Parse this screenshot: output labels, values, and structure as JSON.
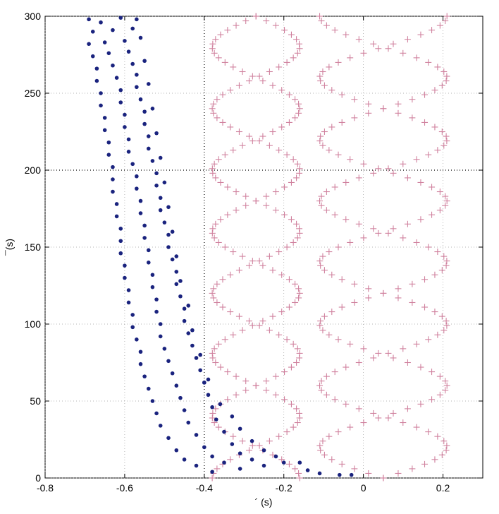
{
  "chart_data": {
    "type": "scatter",
    "xlabel": "´ (s)",
    "ylabel": "¯(s)",
    "xlim": [
      -0.8,
      0.3
    ],
    "ylim": [
      0,
      300
    ],
    "xticks": [
      -0.8,
      -0.6,
      -0.4,
      -0.2,
      0,
      0.2
    ],
    "xtick_labels": [
      "-0.8",
      "-0.6",
      "-0.4",
      "-0.2",
      "0",
      "0.2"
    ],
    "yticks": [
      0,
      50,
      100,
      150,
      200,
      250,
      300
    ],
    "ytick_labels": [
      "0",
      "50",
      "100",
      "150",
      "200",
      "250",
      "300"
    ],
    "grid": "dotted",
    "reference_lines": {
      "x": -0.4,
      "y": 200
    },
    "series": [
      {
        "marker": "dot",
        "color": "#1a237e",
        "points": [
          [
            -0.69,
            298
          ],
          [
            -0.66,
            296
          ],
          [
            -0.61,
            299
          ],
          [
            -0.57,
            298
          ],
          [
            -0.68,
            290
          ],
          [
            -0.63,
            291
          ],
          [
            -0.58,
            292
          ],
          [
            -0.69,
            282
          ],
          [
            -0.65,
            283
          ],
          [
            -0.6,
            284
          ],
          [
            -0.56,
            286
          ],
          [
            -0.68,
            274
          ],
          [
            -0.64,
            276
          ],
          [
            -0.59,
            277
          ],
          [
            -0.67,
            266
          ],
          [
            -0.63,
            268
          ],
          [
            -0.58,
            269
          ],
          [
            -0.55,
            271
          ],
          [
            -0.67,
            258
          ],
          [
            -0.62,
            260
          ],
          [
            -0.57,
            262
          ],
          [
            -0.66,
            250
          ],
          [
            -0.61,
            252
          ],
          [
            -0.57,
            254
          ],
          [
            -0.54,
            256
          ],
          [
            -0.66,
            242
          ],
          [
            -0.61,
            244
          ],
          [
            -0.56,
            246
          ],
          [
            -0.65,
            234
          ],
          [
            -0.6,
            236
          ],
          [
            -0.55,
            238
          ],
          [
            -0.53,
            240
          ],
          [
            -0.65,
            226
          ],
          [
            -0.6,
            228
          ],
          [
            -0.55,
            230
          ],
          [
            -0.64,
            218
          ],
          [
            -0.59,
            220
          ],
          [
            -0.54,
            222
          ],
          [
            -0.52,
            224
          ],
          [
            -0.64,
            210
          ],
          [
            -0.59,
            212
          ],
          [
            -0.54,
            214
          ],
          [
            -0.63,
            202
          ],
          [
            -0.58,
            204
          ],
          [
            -0.53,
            206
          ],
          [
            -0.51,
            208
          ],
          [
            -0.63,
            194
          ],
          [
            -0.57,
            196
          ],
          [
            -0.52,
            198
          ],
          [
            -0.63,
            186
          ],
          [
            -0.57,
            188
          ],
          [
            -0.52,
            190
          ],
          [
            -0.5,
            192
          ],
          [
            -0.62,
            178
          ],
          [
            -0.56,
            180
          ],
          [
            -0.51,
            182
          ],
          [
            -0.62,
            170
          ],
          [
            -0.56,
            172
          ],
          [
            -0.51,
            174
          ],
          [
            -0.49,
            176
          ],
          [
            -0.61,
            162
          ],
          [
            -0.55,
            164
          ],
          [
            -0.5,
            166
          ],
          [
            -0.61,
            154
          ],
          [
            -0.55,
            156
          ],
          [
            -0.49,
            158
          ],
          [
            -0.48,
            160
          ],
          [
            -0.61,
            146
          ],
          [
            -0.54,
            148
          ],
          [
            -0.49,
            150
          ],
          [
            -0.6,
            138
          ],
          [
            -0.54,
            140
          ],
          [
            -0.48,
            142
          ],
          [
            -0.47,
            144
          ],
          [
            -0.6,
            130
          ],
          [
            -0.53,
            132
          ],
          [
            -0.47,
            134
          ],
          [
            -0.59,
            122
          ],
          [
            -0.53,
            124
          ],
          [
            -0.47,
            126
          ],
          [
            -0.46,
            128
          ],
          [
            -0.59,
            114
          ],
          [
            -0.52,
            116
          ],
          [
            -0.46,
            118
          ],
          [
            -0.58,
            106
          ],
          [
            -0.52,
            108
          ],
          [
            -0.45,
            110
          ],
          [
            -0.44,
            112
          ],
          [
            -0.58,
            98
          ],
          [
            -0.51,
            100
          ],
          [
            -0.45,
            102
          ],
          [
            -0.57,
            90
          ],
          [
            -0.51,
            92
          ],
          [
            -0.44,
            94
          ],
          [
            -0.43,
            96
          ],
          [
            -0.56,
            82
          ],
          [
            -0.5,
            84
          ],
          [
            -0.43,
            86
          ],
          [
            -0.56,
            74
          ],
          [
            -0.49,
            76
          ],
          [
            -0.42,
            78
          ],
          [
            -0.41,
            80
          ],
          [
            -0.55,
            66
          ],
          [
            -0.48,
            68
          ],
          [
            -0.41,
            70
          ],
          [
            -0.54,
            58
          ],
          [
            -0.47,
            60
          ],
          [
            -0.4,
            62
          ],
          [
            -0.39,
            64
          ],
          [
            -0.53,
            50
          ],
          [
            -0.46,
            52
          ],
          [
            -0.39,
            54
          ],
          [
            -0.4,
            62
          ],
          [
            -0.52,
            42
          ],
          [
            -0.45,
            44
          ],
          [
            -0.38,
            46
          ],
          [
            -0.36,
            48
          ],
          [
            -0.51,
            34
          ],
          [
            -0.44,
            36
          ],
          [
            -0.37,
            38
          ],
          [
            -0.33,
            40
          ],
          [
            -0.49,
            26
          ],
          [
            -0.42,
            28
          ],
          [
            -0.35,
            30
          ],
          [
            -0.31,
            32
          ],
          [
            -0.47,
            18
          ],
          [
            -0.4,
            20
          ],
          [
            -0.33,
            22
          ],
          [
            -0.28,
            24
          ],
          [
            -0.45,
            12
          ],
          [
            -0.38,
            14
          ],
          [
            -0.31,
            16
          ],
          [
            -0.25,
            18
          ],
          [
            -0.42,
            8
          ],
          [
            -0.35,
            10
          ],
          [
            -0.28,
            12
          ],
          [
            -0.22,
            14
          ],
          [
            -0.38,
            4
          ],
          [
            -0.31,
            6
          ],
          [
            -0.25,
            8
          ],
          [
            -0.2,
            10
          ],
          [
            -0.16,
            10
          ],
          [
            -0.14,
            5
          ],
          [
            -0.11,
            3
          ],
          [
            -0.06,
            2
          ],
          [
            -0.03,
            2
          ]
        ]
      },
      {
        "marker": "plus",
        "color": "#d0819e",
        "note": "sinusoidal curves",
        "curves": [
          {
            "center": 0.05,
            "amplitude": 0.16,
            "period": 80,
            "phase": 0,
            "ymin": 0,
            "ymax": 300,
            "step": 3
          },
          {
            "center": 0.05,
            "amplitude": 0.16,
            "period": 80,
            "phase": 40,
            "ymin": 0,
            "ymax": 300,
            "step": 3
          },
          {
            "center": -0.27,
            "amplitude": 0.11,
            "period": 80,
            "phase": 20,
            "ymin": 0,
            "ymax": 300,
            "step": 3
          },
          {
            "center": -0.27,
            "amplitude": 0.11,
            "period": 80,
            "phase": 60,
            "ymin": 0,
            "ymax": 300,
            "step": 3
          }
        ]
      }
    ]
  }
}
